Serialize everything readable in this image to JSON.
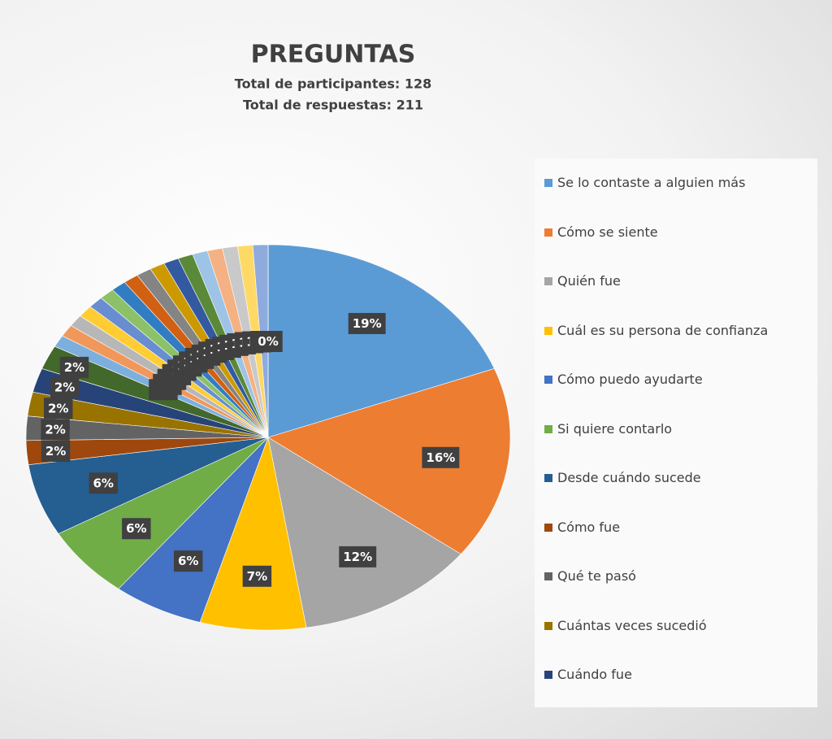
{
  "chart_data": {
    "type": "pie",
    "title": "PREGUNTAS",
    "subtitle": [
      "Total de participantes:  128",
      "Total de respuestas: 211"
    ],
    "categories": [
      "Se lo contaste a alguien más",
      "Cómo se siente",
      "Quién fue",
      "Cuál es su persona de confianza",
      "Cómo puedo ayudarte",
      "Si quiere contarlo",
      "Desde cuándo sucede",
      "Cómo fue",
      "Qué te pasó",
      "Cuántas veces sucedió",
      "Cuándo fue",
      null,
      null,
      null,
      null,
      null,
      null,
      null,
      null,
      null,
      null,
      null,
      null,
      null,
      null,
      null,
      null,
      null,
      null,
      null
    ],
    "values": [
      19,
      16,
      12,
      7,
      6,
      6,
      6,
      2,
      2,
      2,
      2,
      2,
      1,
      1,
      1,
      1,
      1,
      1,
      1,
      1,
      1,
      1,
      1,
      1,
      1,
      1,
      1,
      1,
      1,
      0
    ],
    "value_labels": [
      "19%",
      "16%",
      "12%",
      "7%",
      "6%",
      "6%",
      "6%",
      "2%",
      "2%",
      "2%",
      "2%",
      "2%",
      "1%",
      "1%",
      "1%",
      "1%",
      "1%",
      "1%",
      "1%",
      "1%",
      "1%",
      "1%",
      "1%",
      "1%",
      "1%",
      "1%",
      "1%",
      "1%",
      "1%",
      "0%"
    ],
    "colors": [
      "#5b9bd5",
      "#ed7d31",
      "#a5a5a5",
      "#ffc000",
      "#4472c4",
      "#70ad47",
      "#255e91",
      "#9e480e",
      "#636363",
      "#997300",
      "#264478",
      "#43682b",
      "#7cafdd",
      "#f1975a",
      "#b7b7b7",
      "#ffcd33",
      "#698ed0",
      "#8cc168",
      "#327dc2",
      "#d26012",
      "#848484",
      "#cc9a00",
      "#335aa1",
      "#5a8a39",
      "#9dc3e6",
      "#f4b183",
      "#c9c9c9",
      "#ffd966",
      "#8faadc",
      "#a9d18e"
    ],
    "legend": "right"
  }
}
